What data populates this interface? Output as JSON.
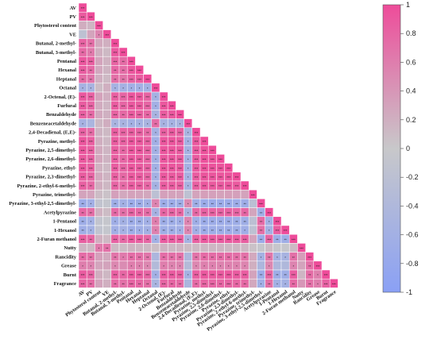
{
  "chart_data": {
    "type": "heatmap",
    "variables": [
      "AV",
      "PV",
      "Phytosterol content",
      "VE",
      "Butanal, 2-methyl-",
      "Butanal, 3-methyl-",
      "Pentanal",
      "Hexanal",
      "Heptanal",
      "Octanal",
      "2-Octenal, (E)-",
      "Furfural",
      "Benzaldehyde",
      "Benzeneacetaldehyde",
      "2,4-Decadienal, (E,E)-",
      "Pyrazine, methyl-",
      "Pyrazine, 2,5-dimethyl-",
      "Pyrazine, 2,6-dimethyl-",
      "Pyrazine, ethyl-",
      "Pyrazine, 2,3-dimethyl-",
      "Pyrazine, 2-ethyl-6-methyl-",
      "Pyrazine, trimethyl-",
      "Pyrazine, 3-ethyl-2,5-dimethyl-",
      "Acetylpyrazine",
      "1-Pentanol",
      "1-Hexanol",
      "2-Furan methanol",
      "Nutty",
      "Rancidity",
      "Grease",
      "Burnt",
      "Fragrance"
    ],
    "highlighted_row_labels": {
      "Phytosterol content": "#9a30b0",
      "Pyrazine, methyl-": "#1a8a3a",
      "Pyrazine, ethyl-": "#1a8a3a"
    },
    "default_label_color": "#111111",
    "correlations": [
      [
        1
      ],
      [
        0.89,
        1
      ],
      [
        0.22,
        0.15,
        1
      ],
      [
        -0.18,
        0.29,
        0.55,
        1
      ],
      [
        0.81,
        0.72,
        0.25,
        0.2,
        1
      ],
      [
        0.77,
        0.64,
        0.2,
        0.12,
        0.9,
        1
      ],
      [
        0.92,
        0.85,
        0.29,
        0.18,
        0.81,
        0.75,
        1
      ],
      [
        0.86,
        0.76,
        0.26,
        0.16,
        0.78,
        0.73,
        0.91,
        1
      ],
      [
        0.74,
        0.67,
        0.21,
        0.12,
        0.72,
        0.68,
        0.82,
        0.86,
        1
      ],
      [
        -0.55,
        -0.52,
        0.1,
        0.2,
        -0.55,
        -0.57,
        -0.62,
        -0.6,
        -0.58,
        1
      ],
      [
        0.9,
        0.82,
        0.31,
        0.21,
        0.84,
        0.8,
        0.93,
        0.89,
        0.81,
        -0.58,
        1
      ],
      [
        0.88,
        0.8,
        0.23,
        0.15,
        0.87,
        0.8,
        0.9,
        0.87,
        0.8,
        -0.6,
        0.91,
        1
      ],
      [
        0.84,
        0.76,
        0.26,
        0.19,
        0.81,
        0.77,
        0.87,
        0.84,
        0.79,
        -0.52,
        0.87,
        0.9,
        1
      ],
      [
        -0.55,
        -0.48,
        0.14,
        0.22,
        -0.5,
        -0.52,
        -0.59,
        -0.56,
        -0.5,
        0.73,
        -0.54,
        -0.55,
        -0.5,
        1
      ],
      [
        0.82,
        0.74,
        0.17,
        0.12,
        0.85,
        0.81,
        0.85,
        0.82,
        0.77,
        -0.57,
        0.84,
        0.88,
        0.82,
        -0.51,
        1
      ],
      [
        0.93,
        0.85,
        0.21,
        0.13,
        0.87,
        0.83,
        0.92,
        0.89,
        0.83,
        -0.62,
        0.92,
        0.93,
        0.88,
        -0.58,
        0.9,
        1
      ],
      [
        0.91,
        0.83,
        0.24,
        0.15,
        0.85,
        0.79,
        0.91,
        0.9,
        0.82,
        -0.6,
        0.92,
        0.91,
        0.88,
        -0.56,
        0.88,
        0.95,
        1
      ],
      [
        0.89,
        0.82,
        0.27,
        0.17,
        0.84,
        0.78,
        0.9,
        0.87,
        0.8,
        -0.59,
        0.9,
        0.9,
        0.87,
        -0.55,
        0.87,
        0.94,
        0.93,
        1
      ],
      [
        0.9,
        0.83,
        0.18,
        0.12,
        0.86,
        0.8,
        0.91,
        0.88,
        0.82,
        -0.61,
        0.91,
        0.92,
        0.87,
        -0.57,
        0.88,
        0.95,
        0.94,
        0.93,
        1
      ],
      [
        0.87,
        0.8,
        0.25,
        0.16,
        0.83,
        0.77,
        0.89,
        0.86,
        0.8,
        -0.58,
        0.9,
        0.89,
        0.86,
        -0.55,
        0.86,
        0.93,
        0.92,
        0.91,
        0.92,
        1
      ],
      [
        0.84,
        0.77,
        0.22,
        0.14,
        0.8,
        0.75,
        0.86,
        0.83,
        0.78,
        -0.56,
        0.86,
        0.86,
        0.83,
        -0.53,
        0.84,
        0.9,
        0.89,
        0.88,
        0.9,
        0.89,
        1
      ],
      [
        0.3,
        0.28,
        0.1,
        0.05,
        0.32,
        0.26,
        0.31,
        0.29,
        0.27,
        -0.2,
        0.32,
        0.31,
        0.3,
        -0.18,
        0.29,
        0.33,
        0.32,
        0.31,
        0.33,
        0.32,
        0.3,
        1
      ],
      [
        -0.7,
        -0.62,
        -0.12,
        -0.08,
        -0.66,
        -0.6,
        -0.71,
        -0.68,
        -0.63,
        0.55,
        -0.7,
        -0.69,
        -0.66,
        0.5,
        -0.66,
        -0.73,
        -0.72,
        -0.71,
        -0.72,
        -0.7,
        -0.68,
        -0.22,
        1
      ],
      [
        0.78,
        0.72,
        0.18,
        0.1,
        0.76,
        0.71,
        0.8,
        0.78,
        0.74,
        -0.55,
        0.79,
        0.8,
        0.77,
        -0.52,
        0.77,
        0.82,
        0.81,
        0.8,
        0.82,
        0.8,
        0.79,
        0.28,
        -0.65,
        1
      ],
      [
        -0.68,
        -0.6,
        -0.1,
        -0.05,
        -0.64,
        -0.59,
        -0.7,
        -0.66,
        -0.62,
        0.6,
        -0.68,
        -0.67,
        -0.64,
        0.55,
        -0.64,
        -0.71,
        -0.7,
        -0.69,
        -0.7,
        -0.68,
        -0.66,
        -0.2,
        0.75,
        -0.6,
        1
      ],
      [
        -0.65,
        -0.58,
        -0.12,
        -0.06,
        -0.62,
        -0.57,
        -0.67,
        -0.64,
        -0.6,
        0.58,
        -0.66,
        -0.65,
        -0.62,
        0.53,
        -0.62,
        -0.69,
        -0.68,
        -0.67,
        -0.68,
        -0.66,
        -0.64,
        -0.18,
        0.72,
        -0.58,
        0.86,
        1
      ],
      [
        0.85,
        0.78,
        0.2,
        0.12,
        0.82,
        0.77,
        0.87,
        0.84,
        0.79,
        -0.6,
        0.86,
        0.86,
        0.83,
        -0.55,
        0.83,
        0.89,
        0.88,
        0.87,
        0.89,
        0.87,
        0.85,
        0.3,
        -0.7,
        0.8,
        -0.68,
        -0.66,
        1
      ],
      [
        0.15,
        0.12,
        0.62,
        0.7,
        0.12,
        0.1,
        0.16,
        0.14,
        0.12,
        0.08,
        0.17,
        0.13,
        0.15,
        0.1,
        0.12,
        0.13,
        0.14,
        0.15,
        0.12,
        0.14,
        0.13,
        0.05,
        -0.05,
        0.1,
        -0.04,
        -0.05,
        0.12,
        1
      ],
      [
        0.75,
        0.7,
        0.32,
        0.25,
        0.68,
        0.63,
        0.74,
        0.71,
        0.66,
        -0.45,
        0.73,
        0.72,
        0.7,
        -0.42,
        0.68,
        0.75,
        0.74,
        0.73,
        0.74,
        0.72,
        0.7,
        0.25,
        -0.58,
        0.66,
        -0.55,
        -0.53,
        0.71,
        0.35,
        1
      ],
      [
        0.6,
        0.55,
        0.28,
        0.3,
        0.52,
        0.48,
        0.6,
        0.58,
        0.52,
        -0.35,
        0.6,
        0.56,
        0.55,
        -0.33,
        0.52,
        0.58,
        0.57,
        0.56,
        0.57,
        0.56,
        0.54,
        0.2,
        -0.45,
        0.52,
        -0.42,
        -0.4,
        0.55,
        0.3,
        0.72,
        1
      ],
      [
        0.88,
        0.8,
        0.22,
        0.14,
        0.84,
        0.79,
        0.89,
        0.86,
        0.8,
        -0.6,
        0.88,
        0.88,
        0.85,
        -0.56,
        0.85,
        0.9,
        0.89,
        0.88,
        0.9,
        0.88,
        0.86,
        0.3,
        -0.7,
        0.8,
        -0.68,
        -0.66,
        0.86,
        0.15,
        0.74,
        0.58,
        1
      ],
      [
        0.8,
        0.74,
        0.3,
        0.2,
        0.75,
        0.7,
        0.8,
        0.78,
        0.72,
        -0.5,
        0.8,
        0.79,
        0.76,
        -0.47,
        0.76,
        0.81,
        0.8,
        0.79,
        0.8,
        0.79,
        0.77,
        0.26,
        -0.63,
        0.72,
        -0.6,
        -0.58,
        0.77,
        0.4,
        0.7,
        0.6,
        0.82,
        1
      ]
    ],
    "significance": {
      "levels": {
        "one": "*",
        "two": "**",
        "three": "***"
      }
    },
    "colorbar": {
      "min": -1,
      "max": 1,
      "ticks": [
        "-1",
        "-0.8",
        "-0.6",
        "-0.4",
        "-0.2",
        "0",
        "0.2",
        "0.4",
        "0.6",
        "0.8",
        "1"
      ],
      "colors": {
        "negative": "#8aa0f5",
        "neutral": "#c8c8ca",
        "positive": "#ee4c9a"
      }
    },
    "title": "",
    "xlabel": "",
    "ylabel": ""
  }
}
